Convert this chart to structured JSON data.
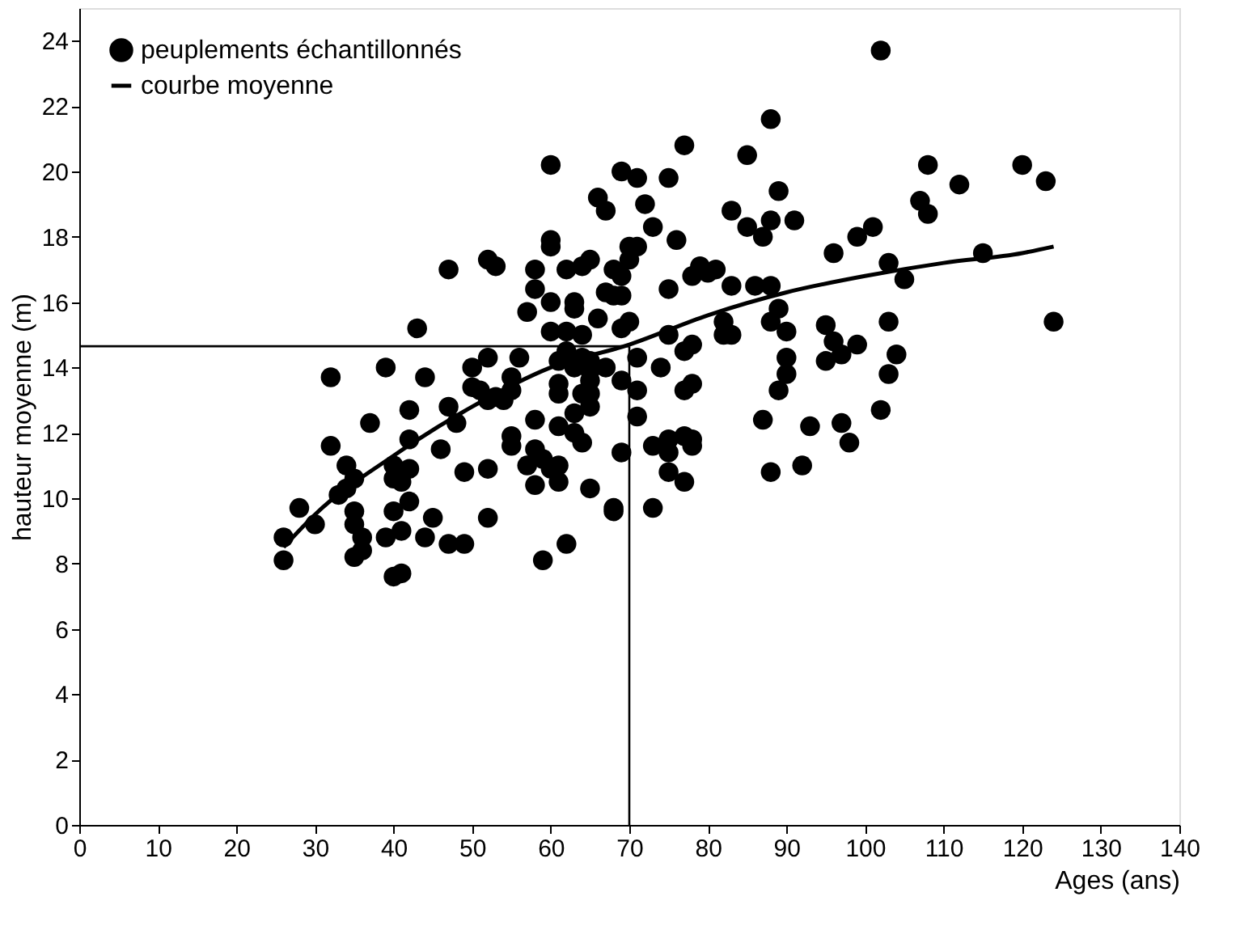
{
  "chart_data": {
    "type": "scatter",
    "xlabel": "Ages (ans)",
    "ylabel": "hauteur moyenne (m)",
    "xlim": [
      0,
      140
    ],
    "xticks": [
      0,
      10,
      20,
      30,
      40,
      50,
      60,
      70,
      80,
      90,
      100,
      110,
      120,
      130,
      140
    ],
    "ylim": [
      0,
      25
    ],
    "yticks": [
      0,
      2,
      4,
      6,
      8,
      10,
      12,
      14,
      16,
      18,
      20,
      22,
      24
    ],
    "grid": false,
    "legend": "top left",
    "ref_lines": [
      {
        "axis": "y",
        "value": 14.65,
        "label": null
      },
      {
        "axis": "x",
        "value": 70,
        "label": null
      }
    ],
    "series": [
      {
        "name": "peuplements échantillonnés",
        "marker": "circle",
        "color": "#000000",
        "x": [
          26,
          26,
          28,
          30,
          32,
          32,
          33,
          34,
          34,
          35,
          35,
          35,
          35,
          36,
          36,
          37,
          39,
          39,
          40,
          40,
          40,
          40,
          41,
          41,
          41,
          42,
          42,
          42,
          42,
          43,
          44,
          44,
          45,
          46,
          47,
          47,
          47,
          48,
          49,
          49,
          50,
          50,
          51,
          52,
          52,
          52,
          52,
          52,
          53,
          53,
          54,
          55,
          55,
          55,
          55,
          56,
          57,
          57,
          58,
          58,
          58,
          58,
          58,
          59,
          59,
          60,
          60,
          60,
          60,
          60,
          60,
          61,
          61,
          61,
          61,
          61,
          61,
          62,
          62,
          62,
          62,
          63,
          63,
          63,
          63,
          63,
          64,
          64,
          64,
          64,
          64,
          65,
          65,
          65,
          65,
          65,
          65,
          65,
          66,
          66,
          67,
          67,
          67,
          68,
          68,
          68,
          68,
          69,
          69,
          69,
          69,
          69,
          69,
          70,
          70,
          70,
          71,
          71,
          71,
          71,
          71,
          72,
          73,
          73,
          73,
          74,
          75,
          75,
          75,
          75,
          75,
          75,
          76,
          77,
          77,
          77,
          77,
          77,
          78,
          78,
          78,
          78,
          78,
          79,
          80,
          81,
          82,
          82,
          83,
          83,
          83,
          85,
          85,
          86,
          87,
          87,
          88,
          88,
          88,
          88,
          88,
          89,
          89,
          89,
          90,
          90,
          90,
          91,
          92,
          93,
          95,
          95,
          96,
          96,
          97,
          97,
          98,
          99,
          99,
          101,
          102,
          102,
          103,
          103,
          103,
          104,
          105,
          107,
          108,
          108,
          112,
          115,
          120,
          123,
          124
        ],
        "values": [
          8.8,
          8.1,
          9.7,
          9.2,
          13.7,
          11.6,
          10.1,
          11.0,
          10.3,
          10.6,
          9.6,
          9.2,
          8.2,
          8.8,
          8.4,
          12.3,
          14.0,
          8.8,
          11.0,
          10.6,
          9.6,
          7.6,
          10.5,
          9.0,
          7.7,
          12.7,
          11.8,
          10.9,
          9.9,
          15.2,
          13.7,
          8.8,
          9.4,
          11.5,
          17.0,
          12.8,
          8.6,
          12.3,
          10.8,
          8.6,
          14.0,
          13.4,
          13.3,
          17.3,
          14.3,
          13.0,
          10.9,
          9.4,
          17.1,
          13.1,
          13.0,
          13.7,
          13.3,
          11.9,
          11.6,
          14.3,
          15.7,
          11.0,
          17.0,
          16.4,
          12.4,
          11.5,
          10.4,
          11.2,
          8.1,
          20.2,
          17.9,
          17.7,
          16.0,
          15.1,
          10.9,
          14.2,
          13.5,
          13.2,
          12.2,
          11.0,
          10.5,
          17.0,
          15.1,
          14.5,
          8.6,
          16.0,
          15.8,
          12.6,
          12.0,
          14.0,
          17.1,
          15.0,
          14.3,
          13.2,
          11.7,
          17.3,
          14.2,
          13.9,
          13.6,
          13.2,
          12.8,
          10.3,
          19.2,
          15.5,
          18.8,
          16.3,
          14.0,
          17.0,
          16.2,
          9.7,
          9.6,
          20.0,
          16.8,
          16.2,
          15.2,
          13.6,
          11.4,
          17.3,
          17.7,
          15.4,
          19.8,
          17.7,
          14.3,
          13.3,
          12.5,
          19.0,
          18.3,
          11.6,
          9.7,
          14.0,
          19.8,
          16.4,
          15.0,
          11.8,
          11.4,
          10.8,
          17.9,
          20.8,
          14.5,
          13.3,
          11.9,
          10.5,
          16.8,
          14.7,
          13.5,
          11.6,
          11.8,
          17.1,
          16.9,
          17.0,
          15.4,
          15.0,
          18.8,
          16.5,
          15.0,
          20.5,
          18.3,
          16.5,
          18.0,
          12.4,
          21.6,
          18.5,
          16.5,
          15.4,
          10.8,
          19.4,
          15.8,
          13.3,
          15.1,
          14.3,
          13.8,
          18.5,
          11.0,
          12.2,
          15.3,
          14.2,
          17.5,
          14.8,
          14.4,
          12.3,
          11.7,
          18.0,
          14.7,
          18.3,
          23.7,
          12.7,
          17.2,
          15.4,
          13.8,
          14.4,
          16.7,
          19.1,
          20.2,
          18.7,
          19.6,
          17.5,
          20.2,
          19.7,
          15.4
        ]
      },
      {
        "name": "courbe moyenne",
        "type": "line",
        "line_style": "solid",
        "color": "#000000",
        "x": [
          26,
          30,
          40,
          50,
          60,
          70,
          80,
          90,
          100,
          110,
          120,
          124
        ],
        "values": [
          8.5,
          9.5,
          11.3,
          12.8,
          14.0,
          14.7,
          15.6,
          16.3,
          16.8,
          17.2,
          17.5,
          17.7
        ]
      }
    ]
  }
}
